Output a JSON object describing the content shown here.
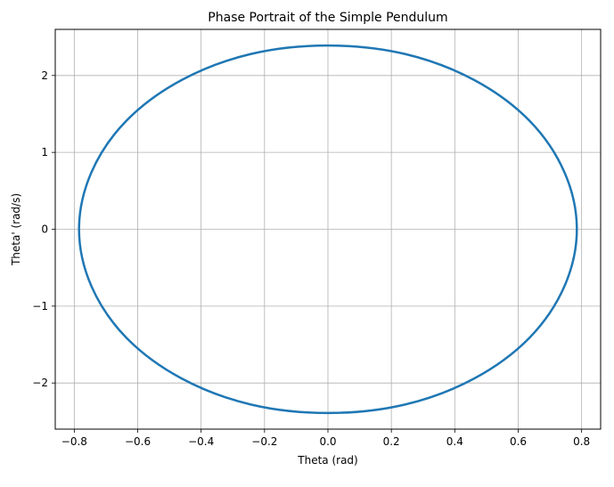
{
  "chart_data": {
    "type": "line",
    "title": "Phase Portrait of the Simple Pendulum",
    "xlabel": "Theta (rad)",
    "ylabel": "Theta' (rad/s)",
    "xlim": [
      -0.86,
      0.86
    ],
    "ylim": [
      -2.6,
      2.6
    ],
    "xticks": [
      -0.8,
      -0.6,
      -0.4,
      -0.2,
      0.0,
      0.2,
      0.4,
      0.6,
      0.8
    ],
    "xtick_labels": [
      "−0.8",
      "−0.6",
      "−0.4",
      "−0.2",
      "0.0",
      "0.2",
      "0.4",
      "0.6",
      "0.8"
    ],
    "yticks": [
      -2,
      -1,
      0,
      1,
      2
    ],
    "ytick_labels": [
      "−2",
      "−1",
      "0",
      "1",
      "2"
    ],
    "grid": true,
    "series": [
      {
        "color": "#1f77b4",
        "x": [
          0.785,
          0.746,
          0.636,
          0.462,
          0.243,
          0.0,
          -0.243,
          -0.462,
          -0.636,
          -0.746,
          -0.785,
          -0.746,
          -0.636,
          -0.462,
          -0.243,
          0.0,
          0.243,
          0.462,
          0.636,
          0.746,
          0.785
        ],
        "y": [
          0.0,
          0.74,
          1.41,
          1.94,
          2.28,
          2.39,
          2.28,
          1.94,
          1.41,
          0.74,
          0.0,
          -0.74,
          -1.41,
          -1.94,
          -2.28,
          -2.39,
          -2.28,
          -1.94,
          -1.41,
          -0.74,
          0.0
        ]
      }
    ]
  }
}
